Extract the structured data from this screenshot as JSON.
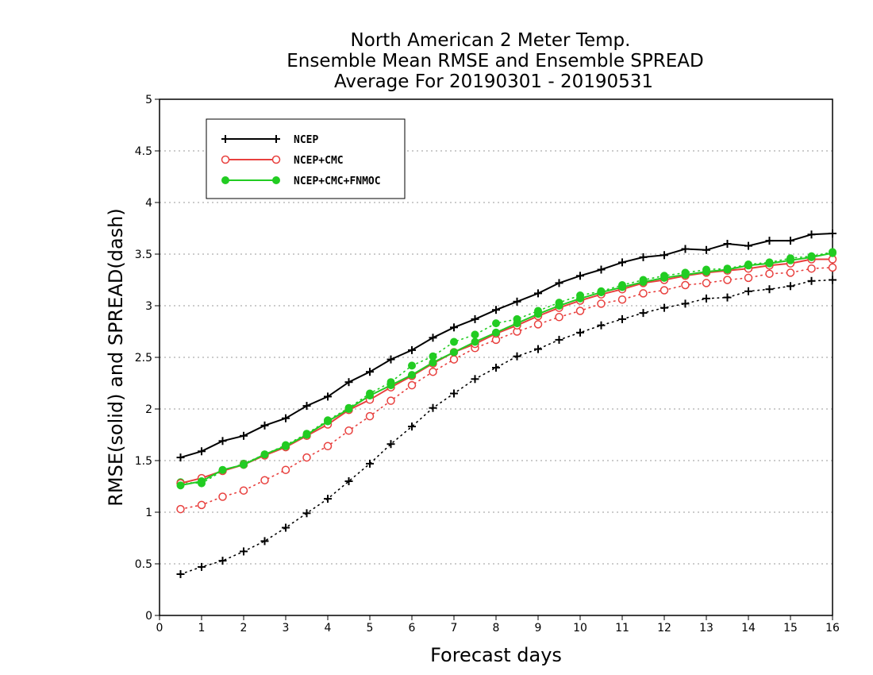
{
  "chart_data": {
    "type": "line",
    "title_lines": [
      "North American 2 Meter Temp.",
      "Ensemble Mean RMSE and Ensemble SPREAD",
      "Average For 20190301 - 20190531"
    ],
    "xlabel": "Forecast days",
    "ylabel": "RMSE(solid) and SPREAD(dash)",
    "xlim": [
      0,
      16
    ],
    "ylim": [
      0,
      5
    ],
    "x_ticks": [
      "0",
      "1",
      "2",
      "3",
      "4",
      "5",
      "6",
      "7",
      "8",
      "9",
      "10",
      "11",
      "12",
      "13",
      "14",
      "15",
      "16"
    ],
    "y_ticks": [
      "0",
      "0.5",
      "1",
      "1.5",
      "2",
      "2.5",
      "3",
      "3.5",
      "4",
      "4.5",
      "5"
    ],
    "grid": "horizontal dotted",
    "legend_position": "top-left",
    "x": [
      0.5,
      1,
      1.5,
      2,
      2.5,
      3,
      3.5,
      4,
      4.5,
      5,
      5.5,
      6,
      6.5,
      7,
      7.5,
      8,
      8.5,
      9,
      9.5,
      10,
      10.5,
      11,
      11.5,
      12,
      12.5,
      13,
      13.5,
      14,
      14.5,
      15,
      15.5,
      16
    ],
    "series": [
      {
        "name": "NCEP",
        "color": "#000000",
        "marker": "plus",
        "rmse": [
          1.53,
          1.59,
          1.69,
          1.74,
          1.84,
          1.91,
          2.03,
          2.12,
          2.26,
          2.36,
          2.48,
          2.57,
          2.69,
          2.79,
          2.87,
          2.96,
          3.04,
          3.12,
          3.22,
          3.29,
          3.35,
          3.42,
          3.47,
          3.49,
          3.55,
          3.54,
          3.6,
          3.58,
          3.63,
          3.63,
          3.69,
          3.7
        ],
        "spread": [
          0.4,
          0.47,
          0.53,
          0.62,
          0.72,
          0.85,
          0.99,
          1.13,
          1.3,
          1.47,
          1.66,
          1.83,
          2.01,
          2.15,
          2.29,
          2.4,
          2.51,
          2.58,
          2.67,
          2.74,
          2.81,
          2.87,
          2.93,
          2.98,
          3.02,
          3.07,
          3.08,
          3.14,
          3.16,
          3.19,
          3.24,
          3.25
        ]
      },
      {
        "name": "NCEP+CMC",
        "color": "#e8403e",
        "marker": "open-circle",
        "rmse": [
          1.28,
          1.33,
          1.4,
          1.46,
          1.55,
          1.63,
          1.74,
          1.85,
          1.99,
          2.09,
          2.21,
          2.32,
          2.44,
          2.55,
          2.63,
          2.73,
          2.81,
          2.9,
          2.98,
          3.05,
          3.11,
          3.16,
          3.22,
          3.25,
          3.29,
          3.32,
          3.34,
          3.36,
          3.39,
          3.41,
          3.45,
          3.45
        ],
        "spread": [
          1.03,
          1.07,
          1.15,
          1.21,
          1.31,
          1.41,
          1.53,
          1.64,
          1.79,
          1.93,
          2.08,
          2.23,
          2.36,
          2.48,
          2.59,
          2.67,
          2.75,
          2.82,
          2.89,
          2.95,
          3.02,
          3.06,
          3.12,
          3.15,
          3.2,
          3.22,
          3.25,
          3.27,
          3.31,
          3.32,
          3.36,
          3.37
        ]
      },
      {
        "name": "NCEP+CMC+FNMOC",
        "color": "#22cc22",
        "marker": "filled-circle",
        "rmse": [
          1.26,
          1.3,
          1.41,
          1.46,
          1.56,
          1.64,
          1.75,
          1.88,
          2.0,
          2.13,
          2.23,
          2.33,
          2.45,
          2.55,
          2.65,
          2.74,
          2.83,
          2.92,
          3.0,
          3.07,
          3.13,
          3.18,
          3.23,
          3.27,
          3.3,
          3.33,
          3.35,
          3.39,
          3.41,
          3.44,
          3.47,
          3.51
        ],
        "spread": [
          1.29,
          1.28,
          1.4,
          1.47,
          1.56,
          1.65,
          1.76,
          1.89,
          2.01,
          2.15,
          2.26,
          2.42,
          2.51,
          2.65,
          2.72,
          2.83,
          2.87,
          2.95,
          3.03,
          3.1,
          3.14,
          3.2,
          3.25,
          3.29,
          3.32,
          3.35,
          3.36,
          3.4,
          3.42,
          3.46,
          3.48,
          3.52
        ]
      }
    ]
  }
}
